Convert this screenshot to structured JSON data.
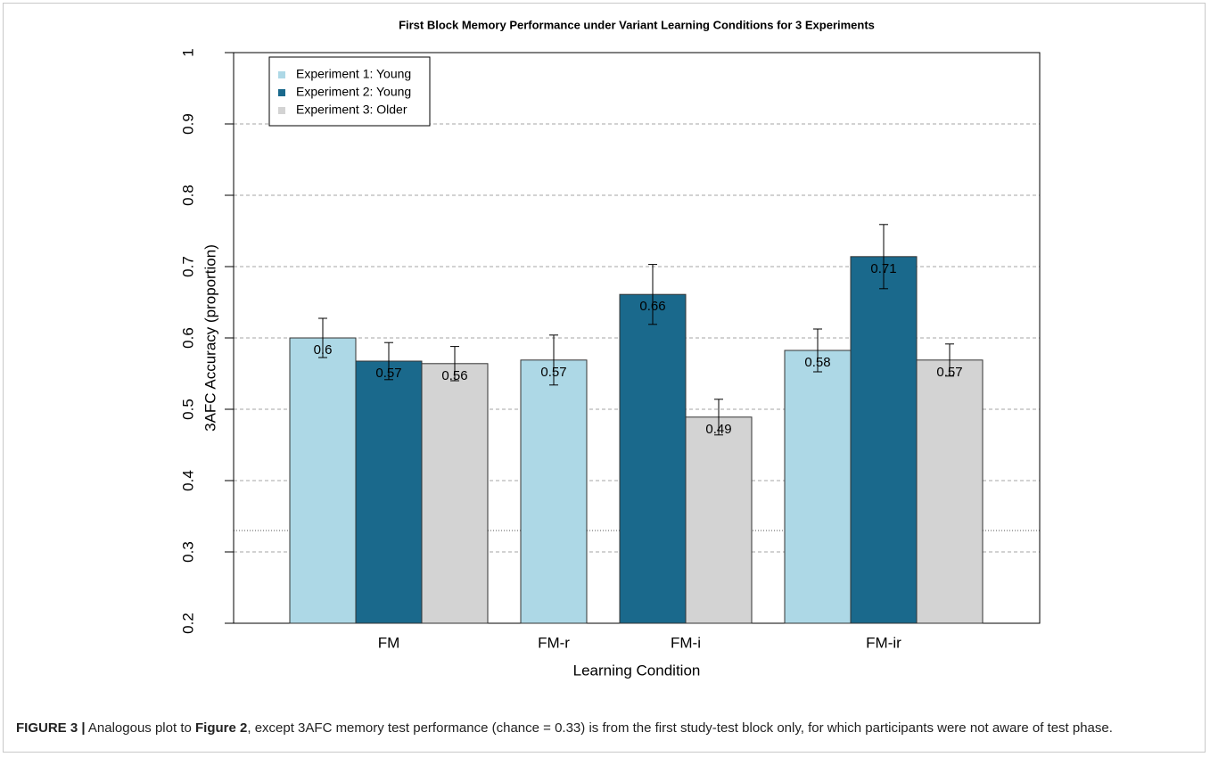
{
  "chart_data": {
    "type": "bar",
    "title": "First Block Memory Performance under Variant Learning Conditions for 3 Experiments",
    "x_label": "Learning Condition",
    "y_label": "3AFC Accuracy (proportion)",
    "categories": [
      "FM",
      "FM-r",
      "FM-i",
      "FM-ir"
    ],
    "series": [
      {
        "name": "Experiment 1: Young",
        "color": "#add8e6",
        "values": [
          0.6,
          0.569,
          null,
          0.5825
        ],
        "errors": [
          0.0275,
          0.035,
          null,
          0.03
        ],
        "value_labels": [
          "0.6",
          "0.57",
          null,
          "0.58"
        ]
      },
      {
        "name": "Experiment 2: Young",
        "color": "#1a698c",
        "values": [
          0.5675,
          null,
          0.661,
          0.714
        ],
        "errors": [
          0.026,
          null,
          0.042,
          0.045
        ],
        "value_labels": [
          "0.57",
          null,
          "0.66",
          "0.71"
        ]
      },
      {
        "name": "Experiment 3: Older",
        "color": "#d3d3d3",
        "values": [
          0.564,
          null,
          0.489,
          0.569
        ],
        "errors": [
          0.024,
          null,
          0.025,
          0.0225
        ],
        "value_labels": [
          "0.56",
          null,
          "0.49",
          "0.57"
        ]
      }
    ],
    "ylim": [
      0.2,
      1
    ],
    "yticks": [
      0.2,
      0.3,
      0.4,
      0.5,
      0.6,
      0.7,
      0.8,
      0.9,
      1
    ],
    "grid": true,
    "reference_line": 0.33,
    "legend": "top-left"
  },
  "caption": {
    "label": "FIGURE 3",
    "separator": "|",
    "text_before": "Analogous plot to",
    "ref": "Figure 2",
    "text_after": ", except 3AFC memory test performance (chance = 0.33) is from the first study-test block only, for which participants were not aware of test phase."
  }
}
